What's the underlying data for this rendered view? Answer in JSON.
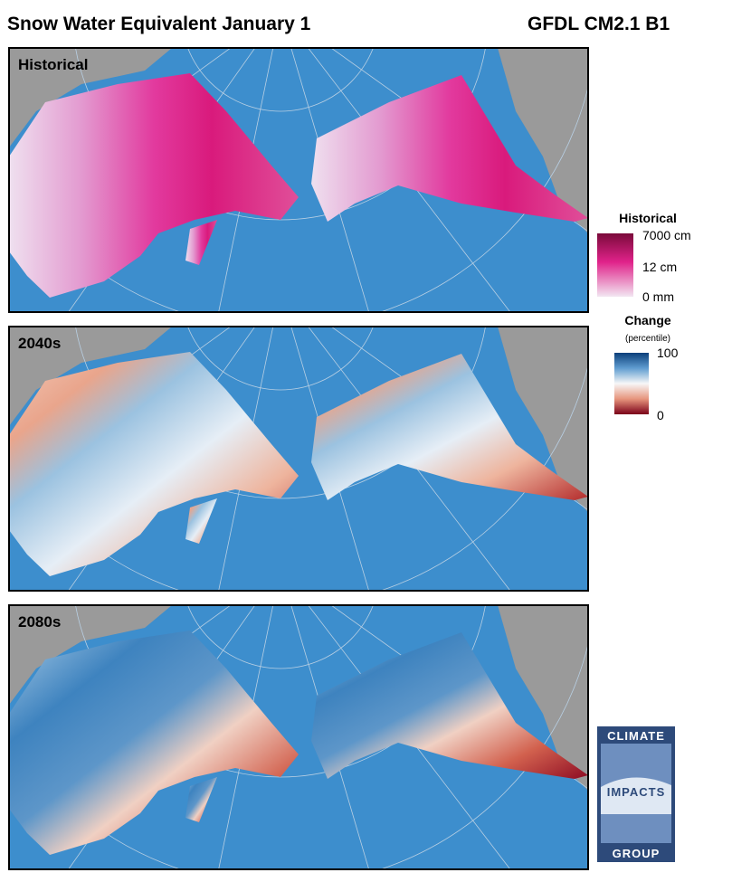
{
  "header": {
    "title": "Snow Water Equivalent January 1",
    "model": "GFDL CM2.1 B1"
  },
  "panels": [
    {
      "label": "Historical"
    },
    {
      "label": "2040s"
    },
    {
      "label": "2080s"
    }
  ],
  "legends": [
    {
      "title": "Historical",
      "labels": [
        "7000 cm",
        "12 cm",
        "0 mm"
      ]
    },
    {
      "title": "Change",
      "subtitle": "(percentile)",
      "labels": [
        "100",
        "0"
      ]
    }
  ],
  "logo": {
    "lines": [
      "CLIMATE",
      "IMPACTS",
      "GROUP"
    ]
  }
}
